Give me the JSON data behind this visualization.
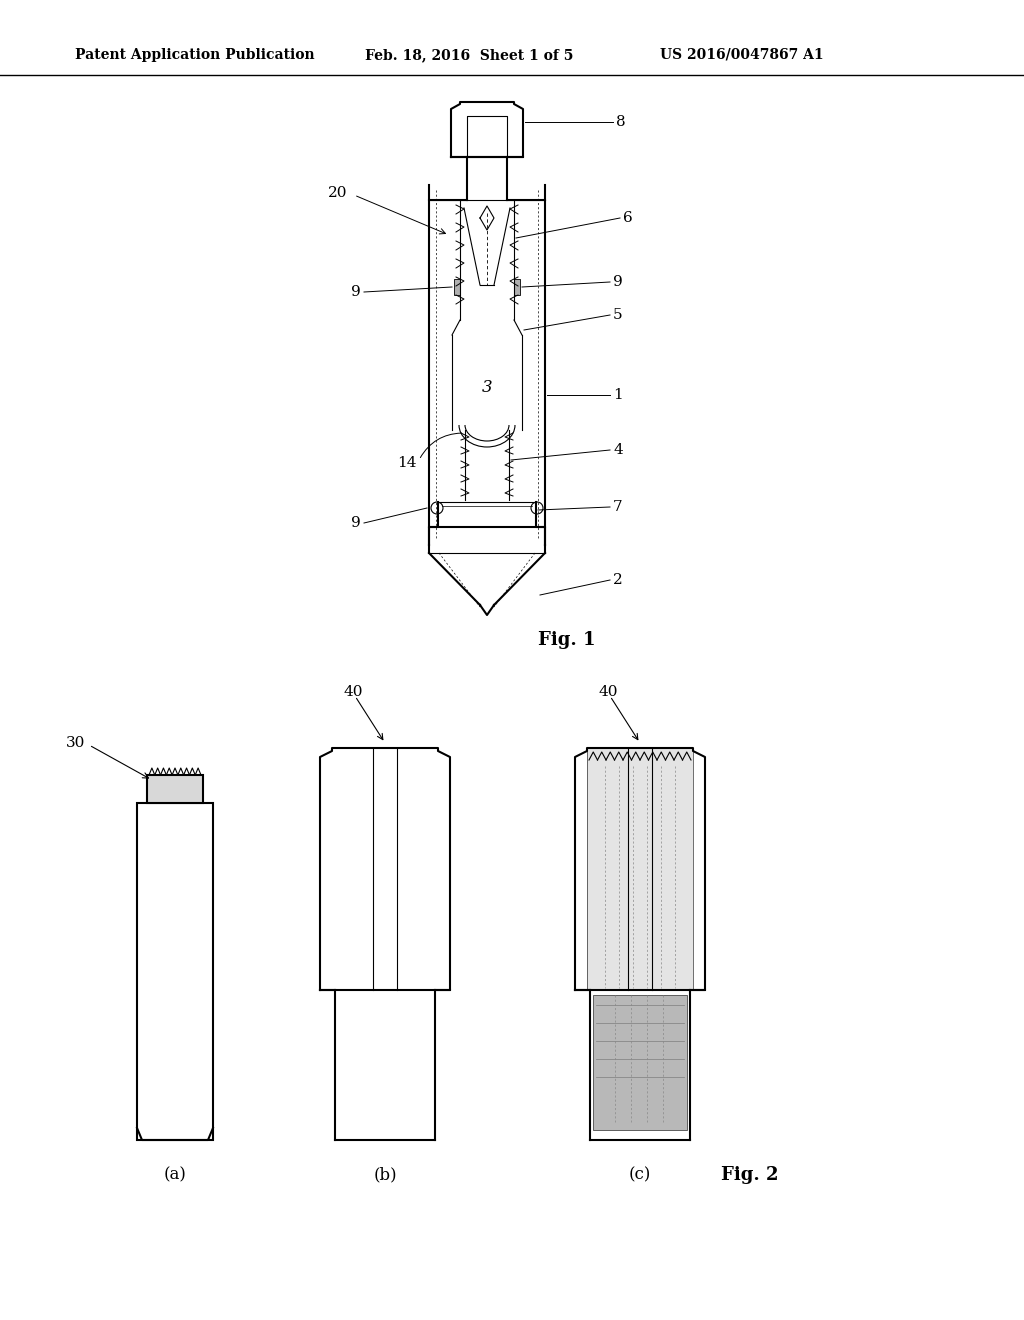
{
  "background_color": "#ffffff",
  "header_left": "Patent Application Publication",
  "header_mid": "Feb. 18, 2016  Sheet 1 of 5",
  "header_right": "US 2016/0047867 A1",
  "fig1_label": "Fig. 1",
  "fig2_label": "Fig. 2",
  "line_color": "#000000"
}
